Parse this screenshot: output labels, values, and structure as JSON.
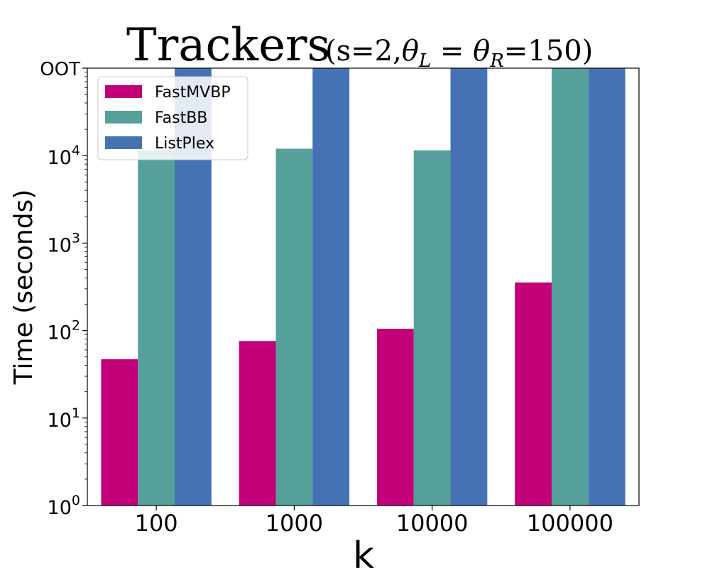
{
  "chart_data": {
    "type": "bar",
    "title": "Trackers",
    "subtitle": "(s=2,θL = θR=150)",
    "subtitle_parts": {
      "prefix": "(s=2,",
      "theta": "θ",
      "sub_left": "L",
      "equals": " = ",
      "sub_right": "R",
      "suffix": "=150)"
    },
    "xlabel": "k",
    "ylabel": "Time (seconds)",
    "yscale": "log",
    "ylim": [
      1,
      100000
    ],
    "categories": [
      "100",
      "1000",
      "10000",
      "100000"
    ],
    "y_ticks": [
      {
        "base": "10",
        "exp": "0",
        "value": 1
      },
      {
        "base": "10",
        "exp": "1",
        "value": 10
      },
      {
        "base": "10",
        "exp": "2",
        "value": 100
      },
      {
        "base": "10",
        "exp": "3",
        "value": 1000
      },
      {
        "base": "10",
        "exp": "4",
        "value": 10000
      }
    ],
    "oot_label": "OOT",
    "oot_value": 100000,
    "series": [
      {
        "name": "FastMVBP",
        "color": "#c20078",
        "values": [
          47,
          76,
          105,
          355
        ]
      },
      {
        "name": "FastBB",
        "color": "#55a09a",
        "values": [
          11500,
          12000,
          11500,
          "OOT"
        ]
      },
      {
        "name": "ListPlex",
        "color": "#4572b4",
        "values": [
          "OOT",
          "OOT",
          "OOT",
          "OOT"
        ]
      }
    ],
    "legend_position": "top-left",
    "grid": false
  }
}
